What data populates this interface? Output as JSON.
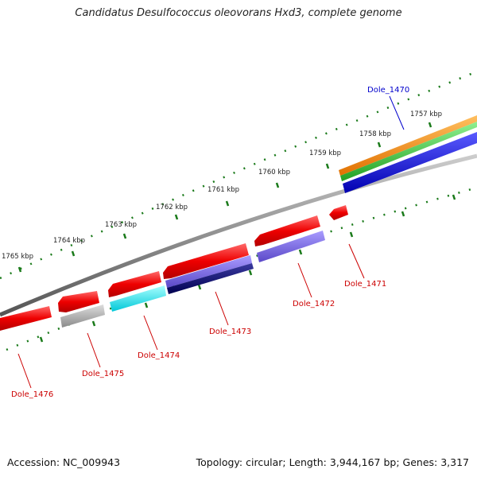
{
  "title": "Candidatus Desulfococcus oleovorans Hxd3, complete genome",
  "footer": {
    "accession": "Accession: NC_009943",
    "topology": "Topology: circular; Length: 3,944,167 bp; Genes: 3,317"
  },
  "scale_labels": [
    "1765 kbp",
    "1764 kbp",
    "1763 kbp",
    "1762 kbp",
    "1761 kbp",
    "1760 kbp",
    "1759 kbp",
    "1758 kbp",
    "1757 kbp"
  ],
  "gene_labels": [
    {
      "name": "Dole_1470",
      "color": "#0000cc"
    },
    {
      "name": "Dole_1471",
      "color": "#cc0000"
    },
    {
      "name": "Dole_1472",
      "color": "#cc0000"
    },
    {
      "name": "Dole_1473",
      "color": "#cc0000"
    },
    {
      "name": "Dole_1474",
      "color": "#cc0000"
    },
    {
      "name": "Dole_1475",
      "color": "#cc0000"
    },
    {
      "name": "Dole_1476",
      "color": "#cc0000"
    }
  ],
  "colors": {
    "tick": "#1a7a1a",
    "backbone": "#888888",
    "gene_red": "#ee0000",
    "grey": "#aaaaaa",
    "cyan": "#00e5ee",
    "slate": "#7b68ee",
    "navy": "#000080",
    "blue": "#0000ee",
    "orange": "#ff8c00",
    "green": "#33cc33"
  }
}
